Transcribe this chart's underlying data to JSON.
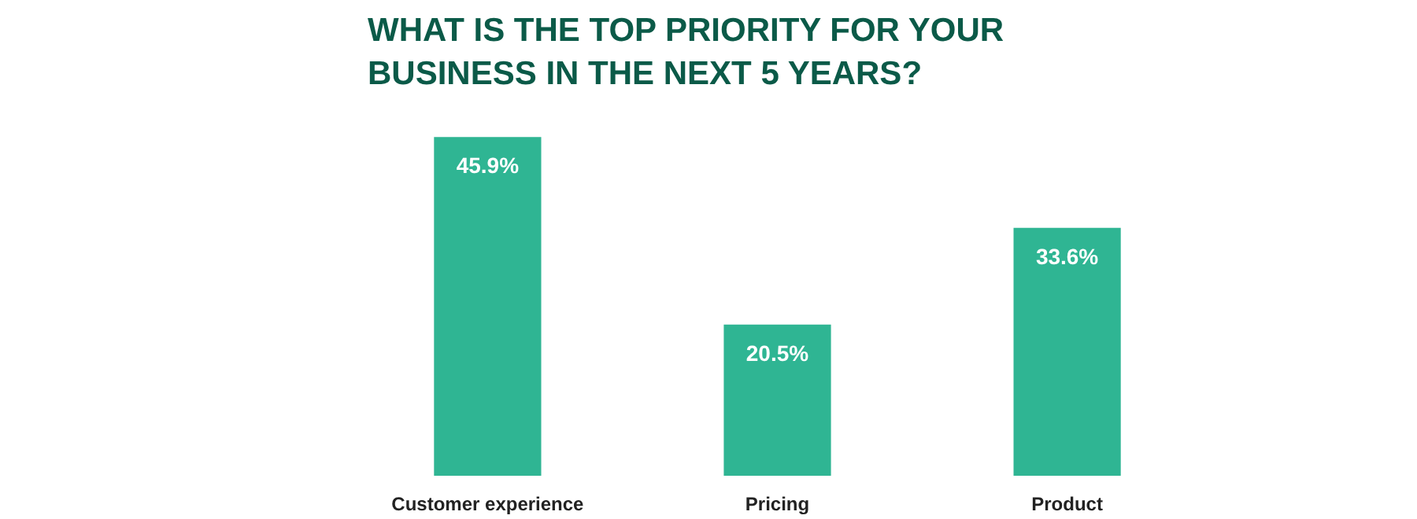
{
  "chart_data": {
    "type": "bar",
    "title": "WHAT IS THE TOP PRIORITY FOR YOUR BUSINESS IN THE NEXT 5 YEARS?",
    "categories": [
      "Customer experience",
      "Pricing",
      "Product"
    ],
    "values": [
      45.9,
      20.5,
      33.6
    ],
    "value_labels": [
      "45.9%",
      "20.5%",
      "33.6%"
    ],
    "color": "#2fb593"
  }
}
